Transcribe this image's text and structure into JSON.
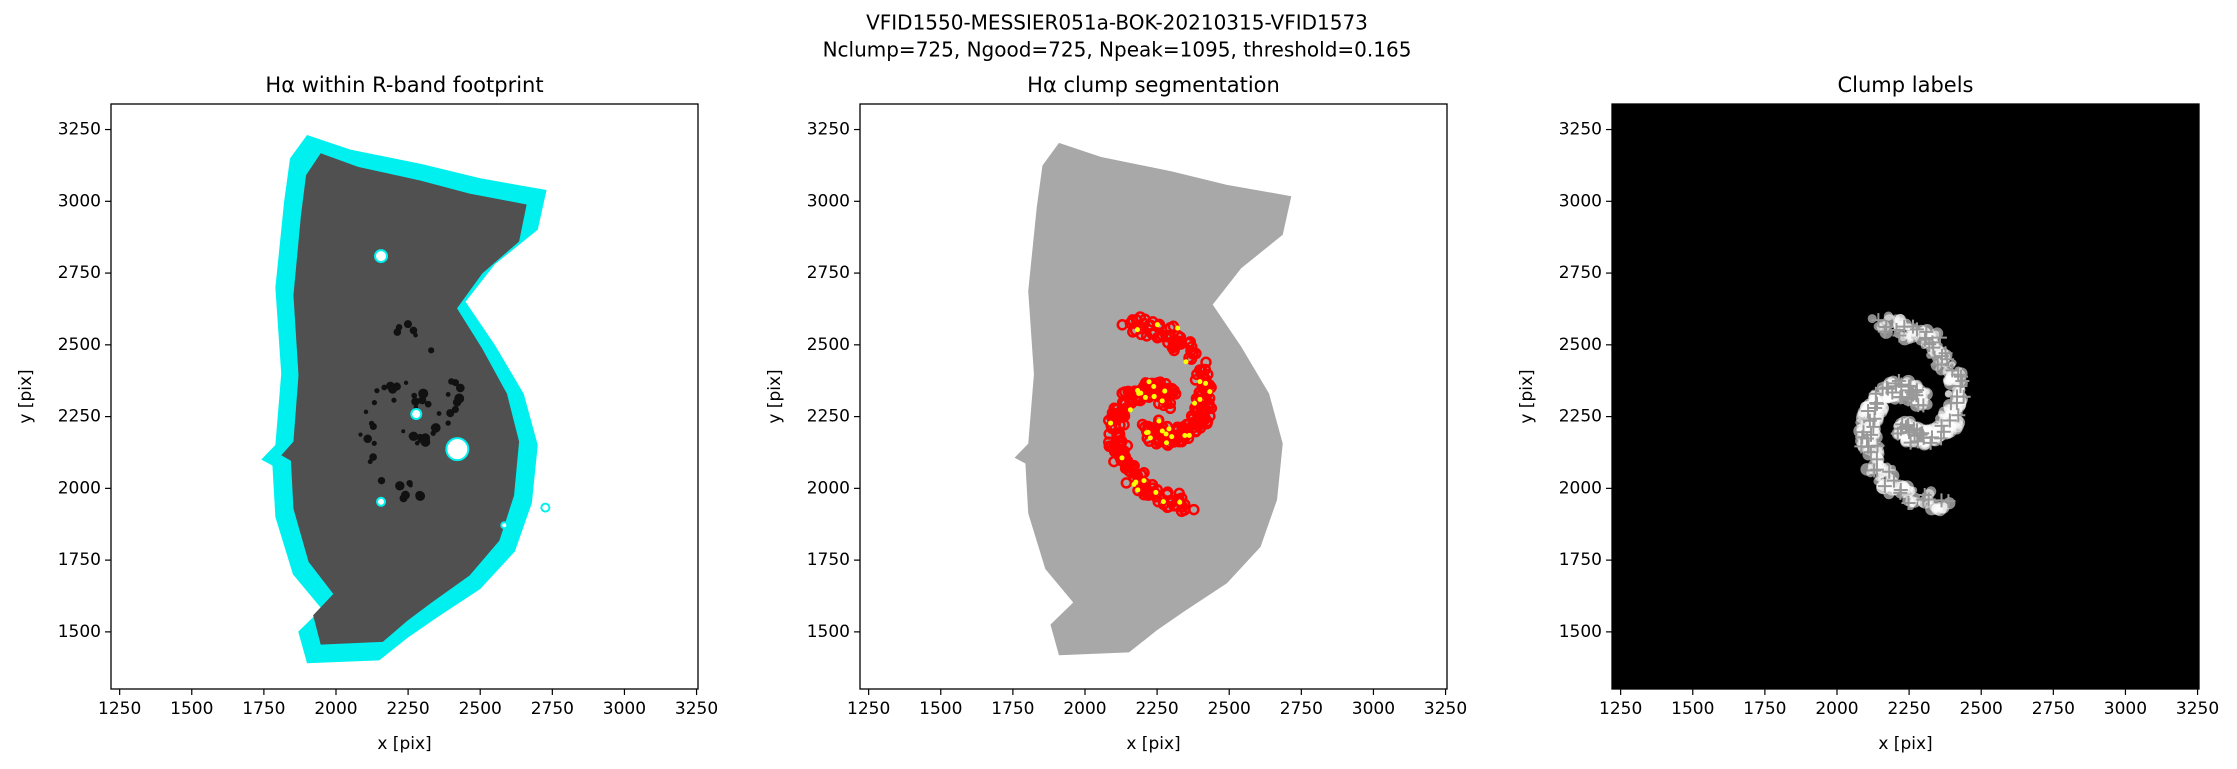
{
  "title": [
    "VFID1550-MESSIER051a-BOK-20210315-VFID1573",
    "Nclump=725, Ngood=725, Npeak=1095, threshold=0.165"
  ],
  "chart_data": [
    {
      "type": "image",
      "title": "Hα within R-band footprint",
      "xlabel": "x [pix]",
      "ylabel": "y [pix]",
      "xlim": [
        1220,
        3255
      ],
      "ylim": [
        1301,
        3339
      ],
      "xticks": [
        1250,
        1500,
        1750,
        2000,
        2250,
        2500,
        2750,
        3000,
        3250
      ],
      "yticks": [
        1500,
        1750,
        2000,
        2250,
        2500,
        2750,
        3000,
        3250
      ]
    },
    {
      "type": "image",
      "title": "Hα clump segmentation",
      "xlabel": "x [pix]",
      "ylabel": "y [pix]",
      "xlim": [
        1220,
        3255
      ],
      "ylim": [
        1301,
        3339
      ],
      "xticks": [
        1250,
        1500,
        1750,
        2000,
        2250,
        2500,
        2750,
        3000,
        3250
      ],
      "yticks": [
        1500,
        1750,
        2000,
        2250,
        2500,
        2750,
        3000,
        3250
      ]
    },
    {
      "type": "image",
      "title": "Clump labels",
      "xlabel": "x [pix]",
      "ylabel": "y [pix]",
      "xlim": [
        1220,
        3255
      ],
      "ylim": [
        1301,
        3339
      ],
      "xticks": [
        1250,
        1500,
        1750,
        2000,
        2250,
        2500,
        2750,
        3000,
        3250
      ],
      "yticks": [
        1500,
        1750,
        2000,
        2250,
        2500,
        2750,
        3000,
        3250
      ]
    }
  ]
}
